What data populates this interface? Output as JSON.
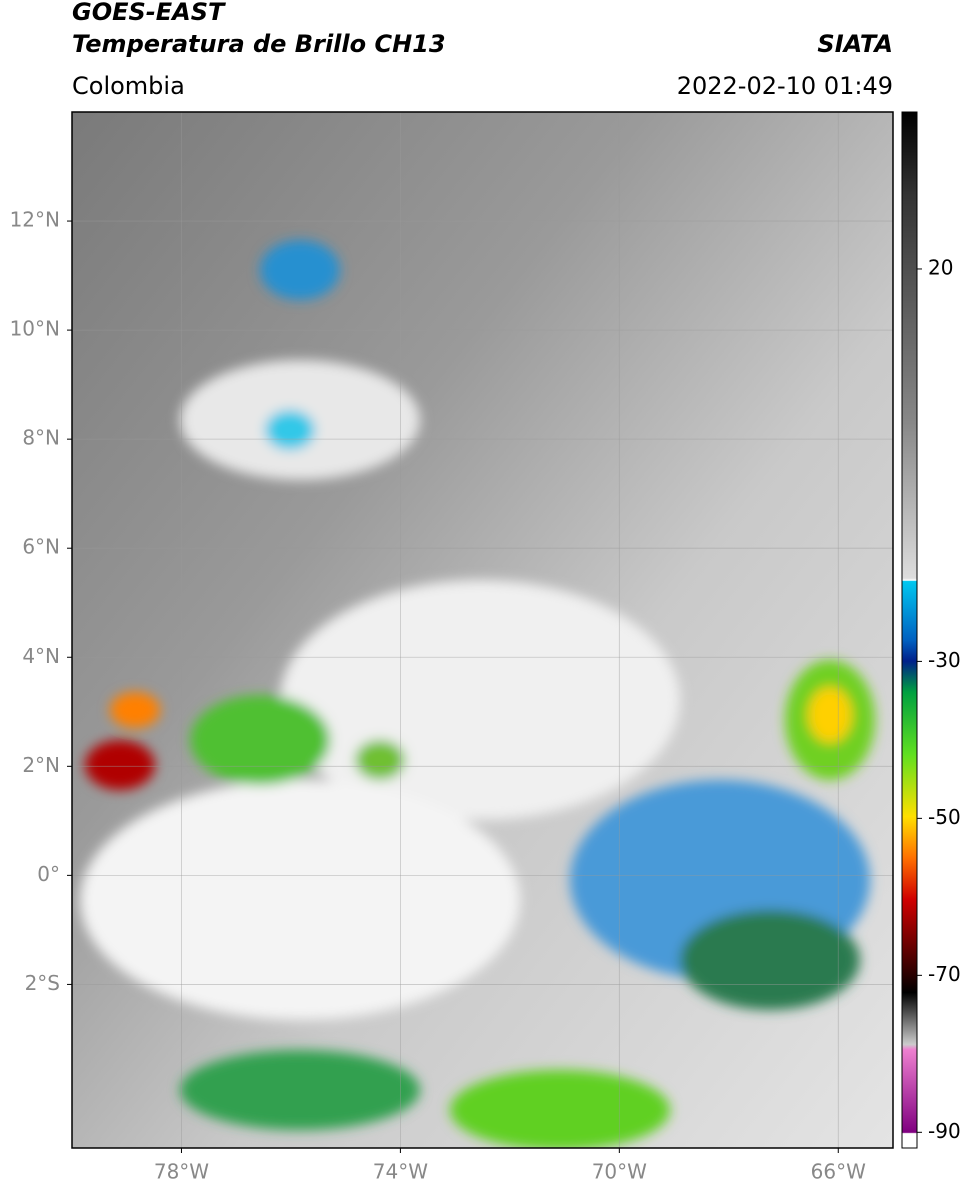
{
  "header": {
    "satellite": "GOES-EAST",
    "product": "Temperatura de Brillo CH13",
    "source": "SIATA",
    "region": "Colombia",
    "datetime": "2022-02-10 01:49"
  },
  "map": {
    "xlim": [
      -80,
      -65
    ],
    "ylim": [
      -5,
      14
    ],
    "xticks": [
      {
        "value": -78,
        "label": "78°W"
      },
      {
        "value": -74,
        "label": "74°W"
      },
      {
        "value": -70,
        "label": "70°W"
      },
      {
        "value": -66,
        "label": "66°W"
      }
    ],
    "yticks": [
      {
        "value": 12,
        "label": "12°N"
      },
      {
        "value": 10,
        "label": "10°N"
      },
      {
        "value": 8,
        "label": "8°N"
      },
      {
        "value": 6,
        "label": "6°N"
      },
      {
        "value": 4,
        "label": "4°N"
      },
      {
        "value": 2,
        "label": "2°N"
      },
      {
        "value": 0,
        "label": "0°"
      },
      {
        "value": -2,
        "label": "2°S"
      }
    ],
    "grid": true
  },
  "colorbar": {
    "lim": [
      -92,
      40
    ],
    "ticks": [
      20,
      -30,
      -50,
      -70,
      -90
    ]
  }
}
